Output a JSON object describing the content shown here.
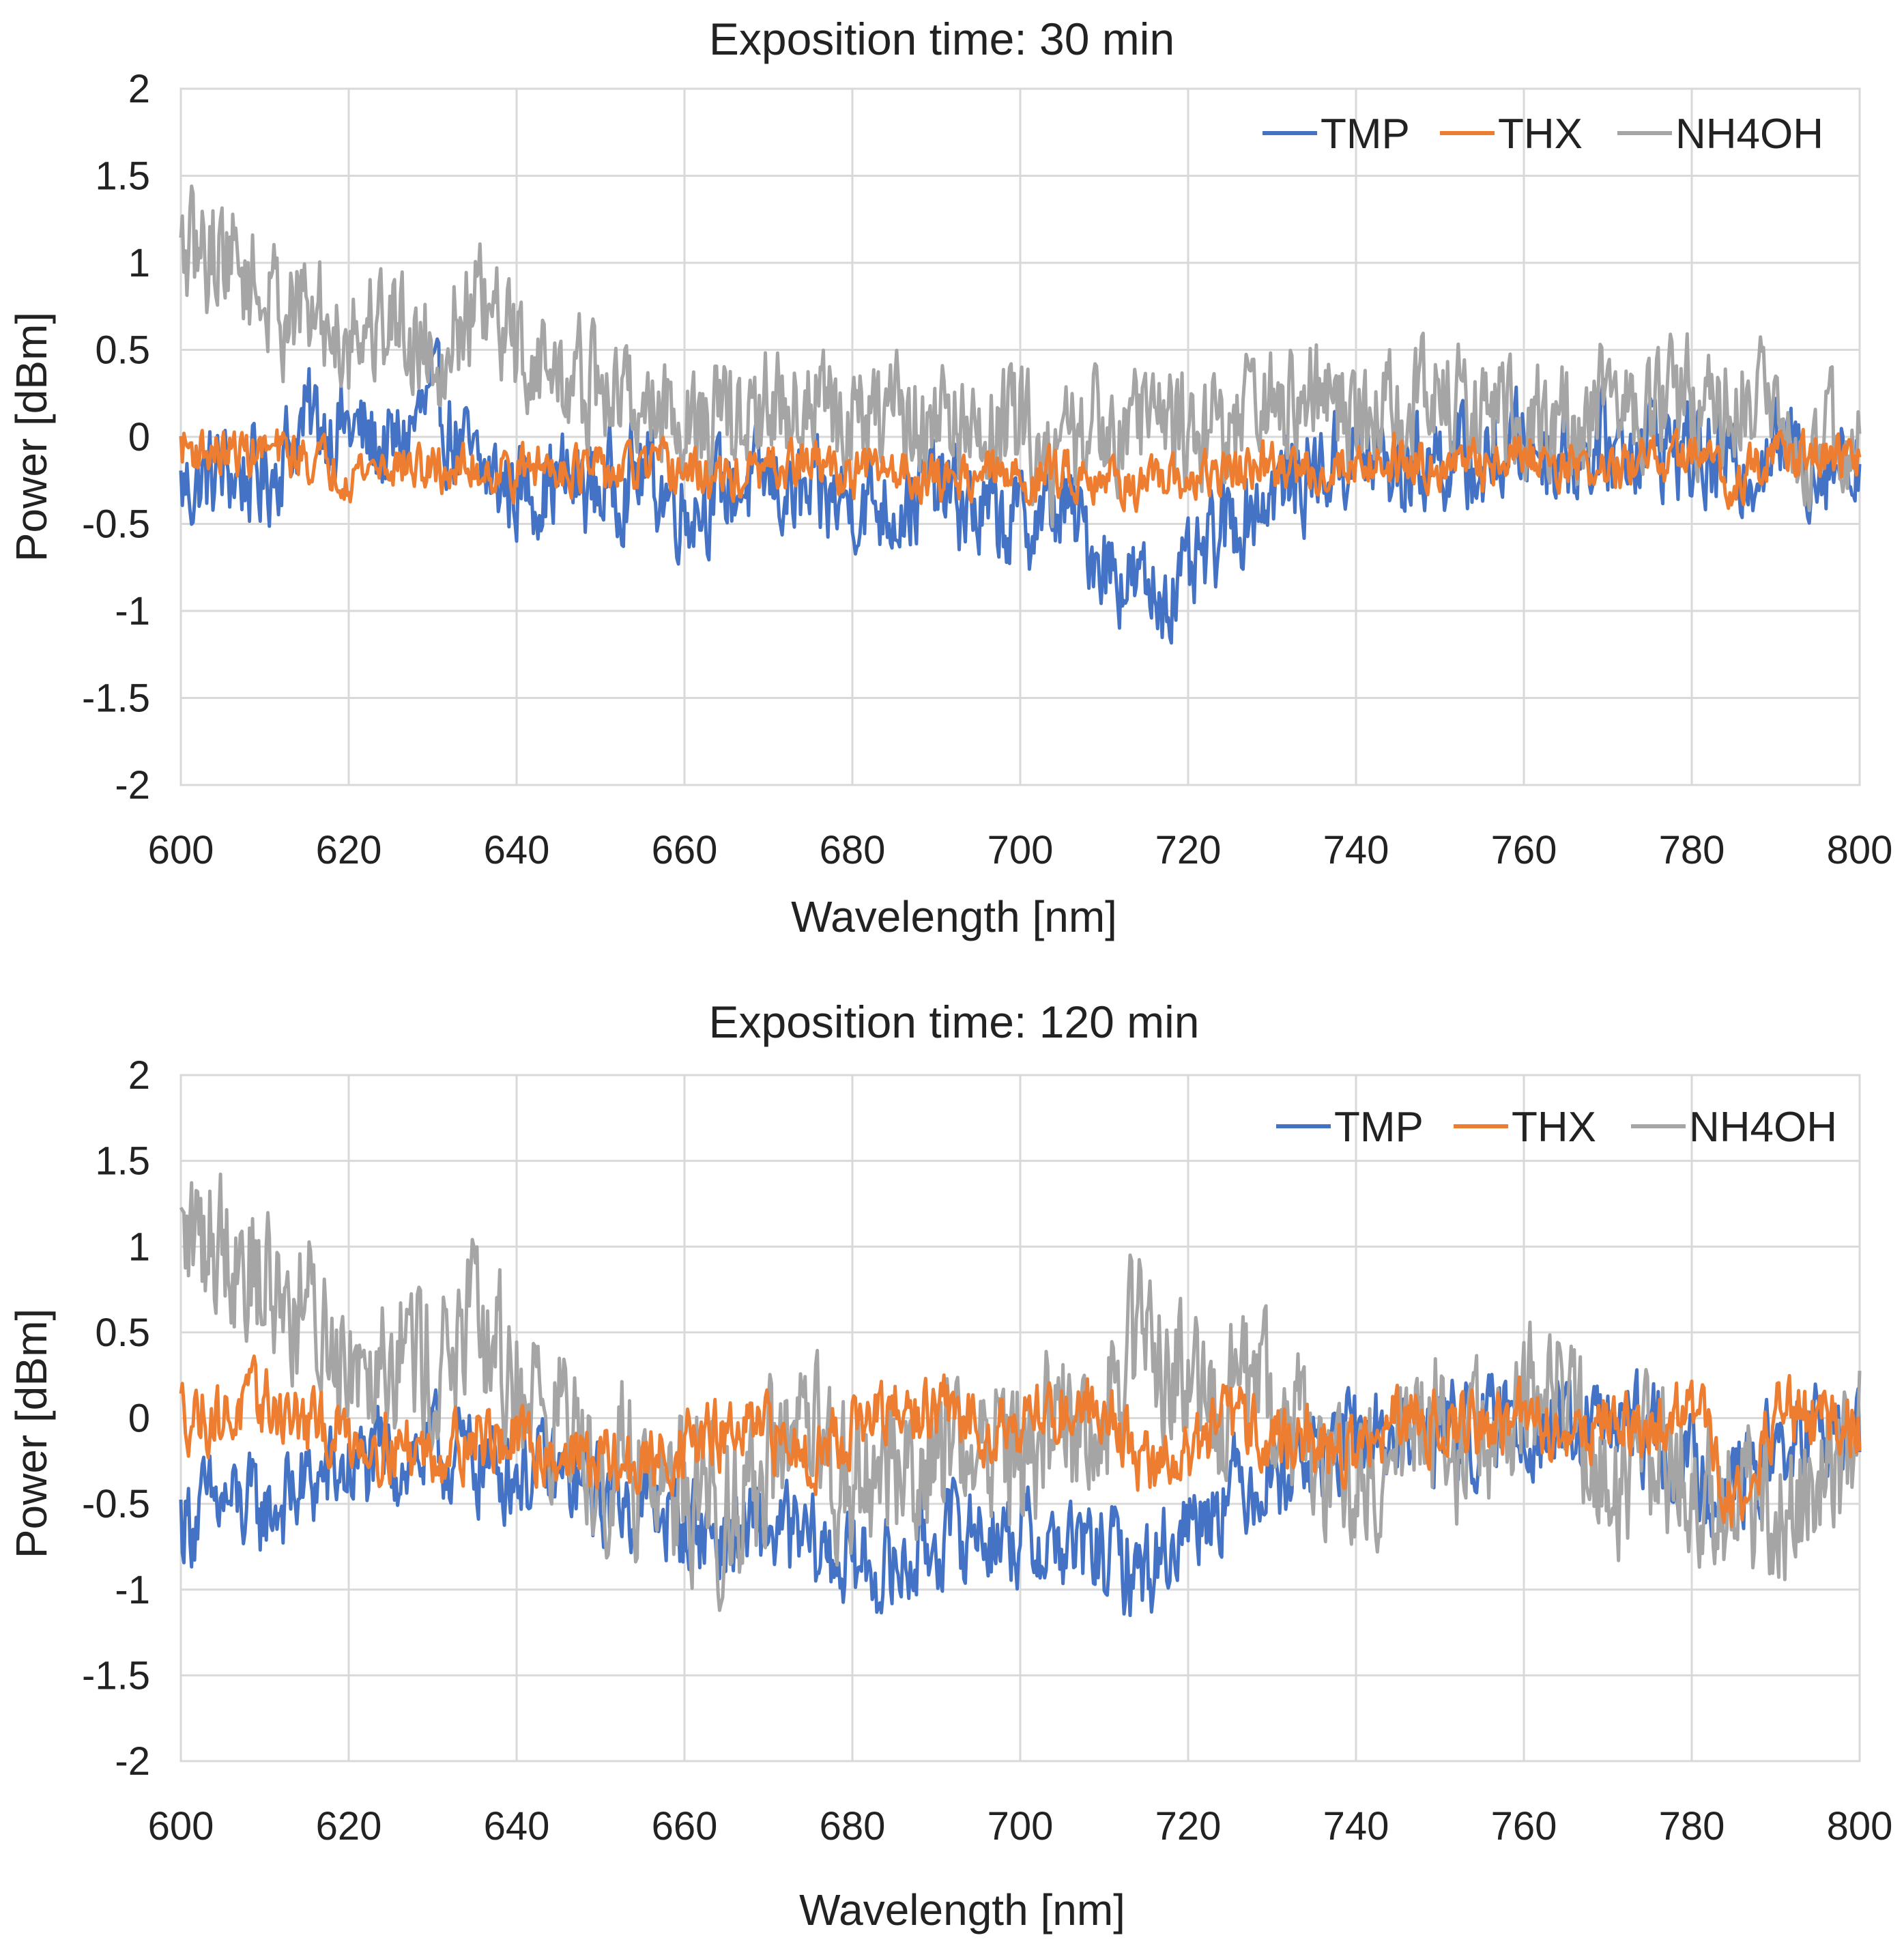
{
  "colors": {
    "TMP": "#4472C4",
    "THX": "#ED7D31",
    "NH4OH": "#A5A5A5",
    "grid": "#D9D9D9",
    "text": "#222222"
  },
  "chart_data": [
    {
      "type": "line",
      "title": "Exposition time: 30 min",
      "xlabel": "Wavelength [nm]",
      "ylabel": "Power [dBm]",
      "xlim": [
        600,
        800
      ],
      "ylim": [
        -2,
        2
      ],
      "x_ticks": [
        600,
        620,
        640,
        660,
        680,
        700,
        720,
        740,
        760,
        780,
        800
      ],
      "y_ticks": [
        2,
        1.5,
        1,
        0.5,
        0,
        -0.5,
        -1,
        -1.5,
        -2
      ],
      "x_tick_labels": [
        "600",
        "620",
        "640",
        "660",
        "680",
        "700",
        "720",
        "740",
        "760",
        "780",
        "800"
      ],
      "y_tick_labels": [
        "2",
        "1.5",
        "1",
        "0.5",
        "0",
        "-0.5",
        "-1",
        "-1.5",
        "-2"
      ],
      "legend": [
        "TMP",
        "THX",
        "NH4OH"
      ],
      "legend_position": "top-right",
      "x": [
        600,
        605,
        610,
        615,
        620,
        625,
        630,
        635,
        640,
        645,
        650,
        655,
        660,
        665,
        670,
        675,
        680,
        685,
        690,
        695,
        700,
        705,
        710,
        715,
        720,
        725,
        730,
        735,
        740,
        745,
        750,
        755,
        760,
        765,
        770,
        775,
        780,
        785,
        790,
        795,
        800
      ],
      "series": [
        {
          "name": "TMP",
          "values": [
            -0.3,
            -0.2,
            -0.25,
            0.1,
            0.05,
            -0.1,
            0.2,
            -0.2,
            -0.3,
            -0.25,
            -0.3,
            -0.2,
            -0.4,
            -0.3,
            -0.25,
            -0.4,
            -0.35,
            -0.4,
            -0.3,
            -0.45,
            -0.5,
            -0.4,
            -0.7,
            -0.9,
            -0.85,
            -0.5,
            -0.3,
            -0.2,
            -0.1,
            -0.2,
            -0.1,
            -0.2,
            0.0,
            -0.1,
            -0.05,
            0.0,
            -0.1,
            -0.2,
            -0.05,
            -0.15,
            -0.1
          ]
        },
        {
          "name": "THX",
          "values": [
            -0.05,
            -0.1,
            -0.08,
            -0.12,
            -0.2,
            -0.15,
            -0.2,
            -0.18,
            -0.2,
            -0.15,
            -0.22,
            -0.18,
            -0.2,
            -0.25,
            -0.2,
            -0.15,
            -0.22,
            -0.18,
            -0.25,
            -0.2,
            -0.25,
            -0.2,
            -0.22,
            -0.3,
            -0.25,
            -0.2,
            -0.18,
            -0.2,
            -0.15,
            -0.12,
            -0.15,
            -0.18,
            -0.1,
            -0.15,
            -0.2,
            -0.15,
            -0.1,
            -0.25,
            -0.1,
            -0.12,
            -0.15
          ]
        },
        {
          "name": "NH4OH",
          "values": [
            1.0,
            1.1,
            0.8,
            0.7,
            0.6,
            0.7,
            0.5,
            0.75,
            0.5,
            0.35,
            0.25,
            0.2,
            0.1,
            0.05,
            0.15,
            0.2,
            0.05,
            0.1,
            0.1,
            0.0,
            0.05,
            -0.1,
            0.1,
            0.15,
            0.05,
            0.1,
            0.15,
            0.2,
            0.1,
            0.15,
            0.2,
            0.1,
            0.15,
            0.05,
            0.2,
            0.15,
            0.2,
            0.25,
            0.1,
            0.0,
            0.0
          ]
        }
      ]
    },
    {
      "type": "line",
      "title": "Exposition time: 120 min",
      "xlabel": "Wavelength [nm]",
      "ylabel": "Power [dBm]",
      "xlim": [
        600,
        800
      ],
      "ylim": [
        -2,
        2
      ],
      "x_ticks": [
        600,
        620,
        640,
        660,
        680,
        700,
        720,
        740,
        760,
        780,
        800
      ],
      "y_ticks": [
        2,
        1.5,
        1,
        0.5,
        0,
        -0.5,
        -1,
        -1.5,
        -2
      ],
      "x_tick_labels": [
        "600",
        "620",
        "640",
        "660",
        "680",
        "700",
        "720",
        "740",
        "760",
        "780",
        "800"
      ],
      "y_tick_labels": [
        "2",
        "1.5",
        "1",
        "0.5",
        "0",
        "-0.5",
        "-1",
        "-1.5",
        "-2"
      ],
      "legend": [
        "TMP",
        "THX",
        "NH4OH"
      ],
      "legend_position": "top-right",
      "x": [
        600,
        605,
        610,
        615,
        620,
        625,
        630,
        635,
        640,
        645,
        650,
        655,
        660,
        665,
        670,
        675,
        680,
        685,
        690,
        695,
        700,
        705,
        710,
        715,
        720,
        725,
        730,
        735,
        740,
        745,
        750,
        755,
        760,
        765,
        770,
        775,
        780,
        785,
        790,
        795,
        800
      ],
      "series": [
        {
          "name": "TMP",
          "values": [
            -0.6,
            -0.5,
            -0.55,
            -0.4,
            -0.3,
            -0.25,
            -0.2,
            -0.25,
            -0.3,
            -0.35,
            -0.45,
            -0.5,
            -0.6,
            -0.7,
            -0.65,
            -0.75,
            -0.85,
            -0.9,
            -0.7,
            -0.65,
            -0.7,
            -0.75,
            -0.8,
            -0.9,
            -0.6,
            -0.4,
            -0.3,
            -0.2,
            -0.15,
            -0.1,
            -0.05,
            -0.1,
            0.0,
            -0.1,
            -0.05,
            -0.1,
            -0.3,
            -0.4,
            -0.2,
            -0.1,
            -0.15
          ]
        },
        {
          "name": "THX",
          "values": [
            0.05,
            0.0,
            0.1,
            -0.05,
            -0.1,
            -0.15,
            -0.2,
            -0.1,
            -0.15,
            -0.2,
            -0.25,
            -0.3,
            -0.15,
            -0.1,
            -0.1,
            -0.2,
            -0.05,
            0.0,
            0.05,
            -0.05,
            0.0,
            0.05,
            0.1,
            -0.3,
            -0.2,
            0.0,
            -0.1,
            -0.15,
            -0.2,
            -0.05,
            0.0,
            -0.05,
            0.0,
            -0.1,
            0.0,
            -0.1,
            0.1,
            -0.5,
            0.0,
            0.0,
            -0.05
          ]
        },
        {
          "name": "NH4OH",
          "values": [
            1.0,
            1.1,
            0.8,
            0.6,
            0.4,
            0.5,
            0.3,
            0.5,
            0.2,
            0.0,
            -0.2,
            -0.3,
            -0.4,
            -0.5,
            -0.3,
            -0.2,
            -0.4,
            -0.3,
            -0.2,
            -0.1,
            -0.2,
            -0.1,
            0.1,
            0.5,
            0.2,
            0.1,
            0.0,
            -0.2,
            -0.3,
            -0.2,
            -0.1,
            -0.2,
            0.0,
            0.1,
            -0.3,
            -0.2,
            -0.3,
            -0.5,
            -0.6,
            -0.4,
            -0.2
          ]
        }
      ]
    }
  ]
}
